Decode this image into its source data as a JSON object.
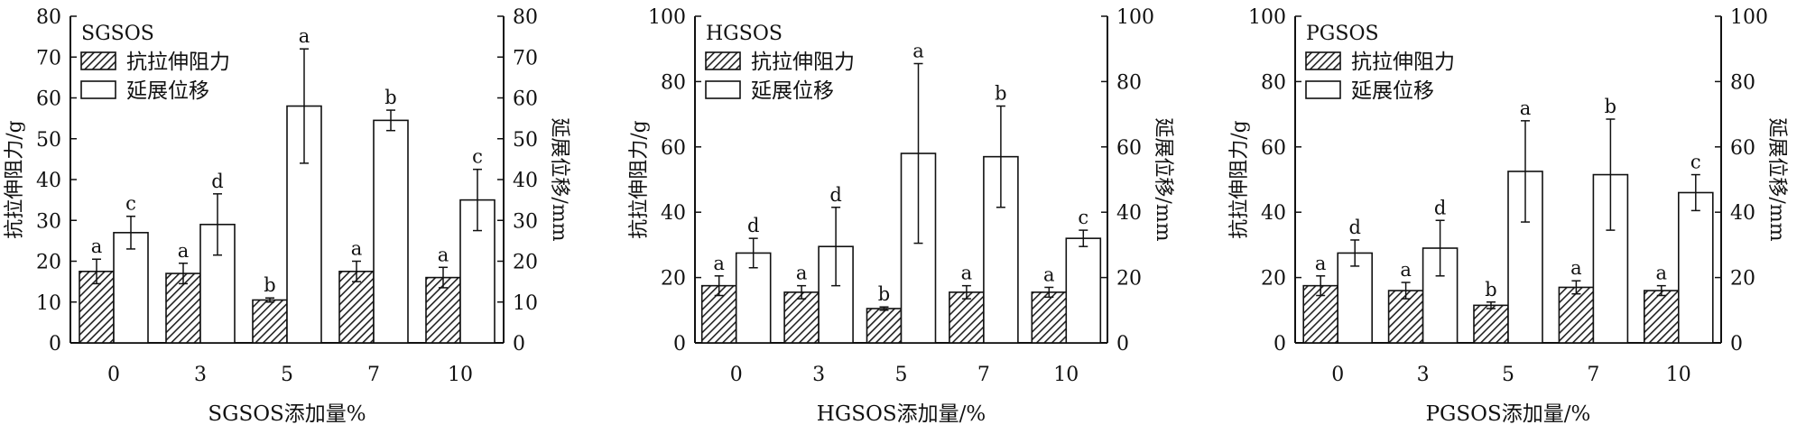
{
  "chart_data": [
    {
      "type": "bar",
      "title": "SGSOS",
      "xlabel": "SGSOS添加量%",
      "ylabel": "抗拉伸阻力/g",
      "y2label": "延展位移/mm",
      "categories": [
        "0",
        "3",
        "5",
        "7",
        "10"
      ],
      "ylim": [
        0,
        80
      ],
      "yticks": [
        0,
        10,
        20,
        30,
        40,
        50,
        60,
        70,
        80
      ],
      "y2lim": [
        0,
        80
      ],
      "y2ticks": [
        0,
        10,
        20,
        30,
        40,
        50,
        60,
        70,
        80
      ],
      "legend_position": "top-left",
      "series": [
        {
          "name": "抗拉伸阻力",
          "pattern": "hatched",
          "axis": "left",
          "values": [
            17.5,
            17,
            10.5,
            17.5,
            16
          ],
          "errors": [
            3,
            2.5,
            0.5,
            2.5,
            2.5
          ],
          "labels": [
            "a",
            "a",
            "b",
            "a",
            "a"
          ]
        },
        {
          "name": "延展位移",
          "pattern": "open",
          "axis": "right",
          "values": [
            27,
            29,
            58,
            54.5,
            35
          ],
          "errors": [
            4,
            7.5,
            14,
            2.5,
            7.5
          ],
          "labels": [
            "c",
            "d",
            "a",
            "b",
            "c"
          ]
        }
      ]
    },
    {
      "type": "bar",
      "title": "HGSOS",
      "xlabel": "HGSOS添加量/%",
      "ylabel": "抗拉伸阻力/g",
      "y2label": "延展位移/mm",
      "categories": [
        "0",
        "3",
        "5",
        "7",
        "10"
      ],
      "ylim": [
        0,
        100
      ],
      "yticks": [
        0,
        20,
        40,
        60,
        80,
        100
      ],
      "y2lim": [
        0,
        100
      ],
      "y2ticks": [
        0,
        20,
        40,
        60,
        80,
        100
      ],
      "legend_position": "top-left",
      "series": [
        {
          "name": "抗拉伸阻力",
          "pattern": "hatched",
          "axis": "left",
          "values": [
            17.5,
            15.5,
            10.5,
            15.5,
            15.5
          ],
          "errors": [
            3,
            2,
            0.5,
            2,
            1.5
          ],
          "labels": [
            "a",
            "a",
            "b",
            "a",
            "a"
          ]
        },
        {
          "name": "延展位移",
          "pattern": "open",
          "axis": "right",
          "values": [
            27.5,
            29.5,
            58,
            57,
            32
          ],
          "errors": [
            4.5,
            12,
            27.5,
            15.5,
            2.5
          ],
          "labels": [
            "d",
            "d",
            "a",
            "b",
            "c"
          ]
        }
      ]
    },
    {
      "type": "bar",
      "title": "PGSOS",
      "xlabel": "PGSOS添加量/%",
      "ylabel": "抗拉伸阻力/g",
      "y2label": "延展位移/mm",
      "categories": [
        "0",
        "3",
        "5",
        "7",
        "10"
      ],
      "ylim": [
        0,
        100
      ],
      "yticks": [
        0,
        20,
        40,
        60,
        80,
        100
      ],
      "y2lim": [
        0,
        100
      ],
      "y2ticks": [
        0,
        20,
        40,
        60,
        80,
        100
      ],
      "legend_position": "top-left",
      "series": [
        {
          "name": "抗拉伸阻力",
          "pattern": "hatched",
          "axis": "left",
          "values": [
            17.5,
            16,
            11.5,
            17,
            16
          ],
          "errors": [
            3,
            2.5,
            1,
            2,
            1.5
          ],
          "labels": [
            "a",
            "a",
            "b",
            "a",
            "a"
          ]
        },
        {
          "name": "延展位移",
          "pattern": "open",
          "axis": "right",
          "values": [
            27.5,
            29,
            52.5,
            51.5,
            46
          ],
          "errors": [
            4,
            8.5,
            15.5,
            17,
            5.5
          ],
          "labels": [
            "d",
            "d",
            "a",
            "b",
            "c"
          ]
        }
      ]
    }
  ]
}
